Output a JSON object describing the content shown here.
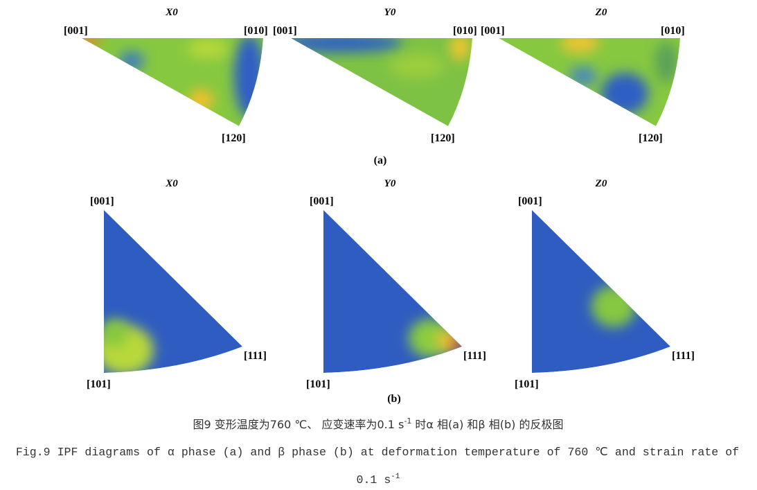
{
  "figure": {
    "panels_a": [
      {
        "title": "X0",
        "labels": [
          "[001]",
          "[010]",
          "[120]"
        ]
      },
      {
        "title": "Y0",
        "labels": [
          "[001]",
          "[010]",
          "[120]"
        ]
      },
      {
        "title": "Z0",
        "labels": [
          "[001]",
          "[010]",
          "[120]"
        ]
      }
    ],
    "label_a": "(a)",
    "panels_b": [
      {
        "title": "X0",
        "labels": [
          "[001]",
          "[111]",
          "[101]"
        ]
      },
      {
        "title": "Y0",
        "labels": [
          "[001]",
          "[111]",
          "[101]"
        ]
      },
      {
        "title": "Z0",
        "labels": [
          "[001]",
          "[111]",
          "[101]"
        ]
      }
    ],
    "label_b": "(b)"
  },
  "caption": {
    "zh": {
      "text": "图9 变形温度为760 ℃、 应变速率为0.1 s",
      "sup": "-1",
      "rest": " 时α 相(a) 和β 相(b) 的反极图"
    },
    "en": {
      "line1": "Fig.9 IPF diagrams of α phase (a) and β phase (b) at deformation temperature of 760 ℃ and strain rate of",
      "line2": "0.1 s",
      "sup": "-1"
    }
  }
}
